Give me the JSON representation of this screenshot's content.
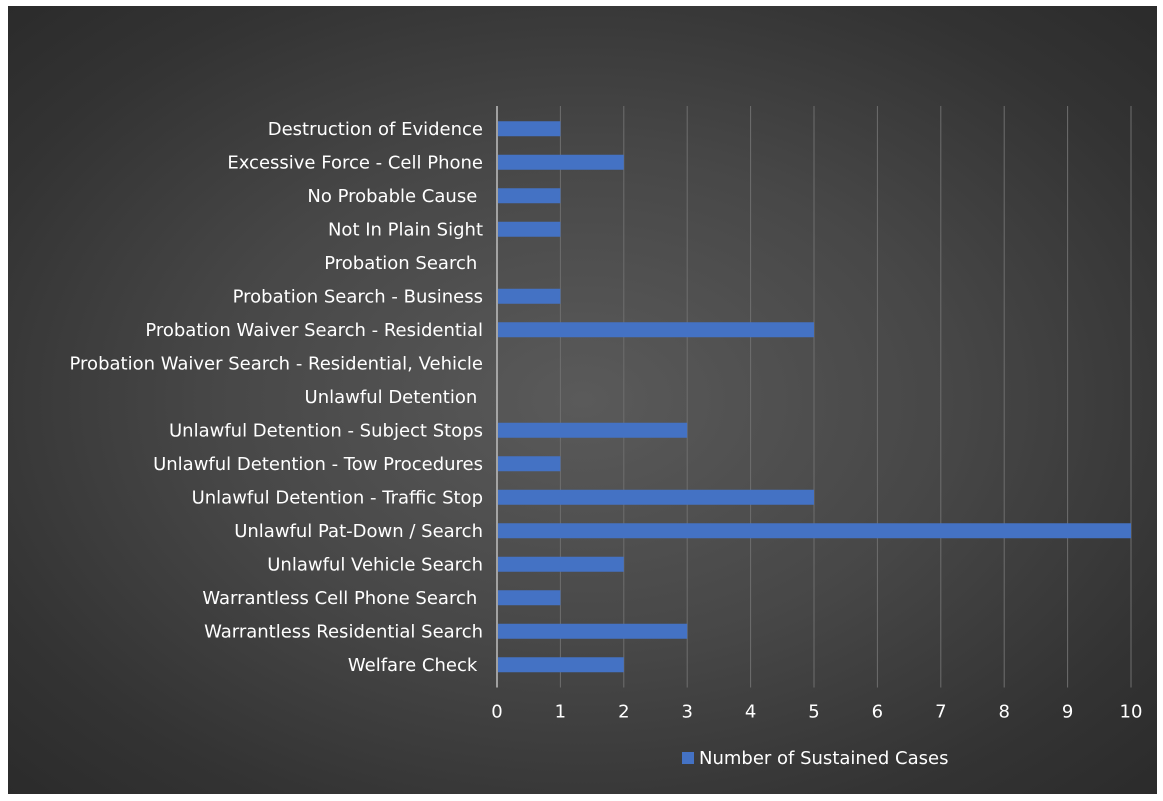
{
  "chart_data": {
    "type": "bar",
    "orientation": "horizontal",
    "categories": [
      "Destruction of Evidence",
      "Excessive Force - Cell Phone",
      "No Probable Cause ",
      "Not In Plain Sight",
      "Probation Search ",
      "Probation Search - Business",
      "Probation Waiver Search - Residential",
      "Probation Waiver Search - Residential, Vehicle",
      "Unlawful Detention ",
      "Unlawful Detention - Subject Stops",
      "Unlawful Detention - Tow Procedures",
      "Unlawful Detention - Traffic Stop",
      "Unlawful Pat-Down / Search",
      "Unlawful Vehicle Search",
      "Warrantless Cell Phone Search ",
      "Warrantless Residential Search",
      "Welfare Check "
    ],
    "series": [
      {
        "name": "Number of Sustained Cases",
        "values": [
          1,
          2,
          1,
          1,
          0,
          1,
          5,
          0,
          0,
          3,
          1,
          5,
          10,
          2,
          1,
          3,
          2
        ]
      }
    ],
    "xlim": [
      0,
      10
    ],
    "xticks": [
      "0",
      "1",
      "2",
      "3",
      "4",
      "5",
      "6",
      "7",
      "8",
      "9",
      "10"
    ],
    "grid": "vertical",
    "legend": "bottom",
    "colors": {
      "bar": "#4472c4",
      "background": "#404040",
      "grid": "#6e6e6e",
      "text": "#ffffff"
    }
  }
}
